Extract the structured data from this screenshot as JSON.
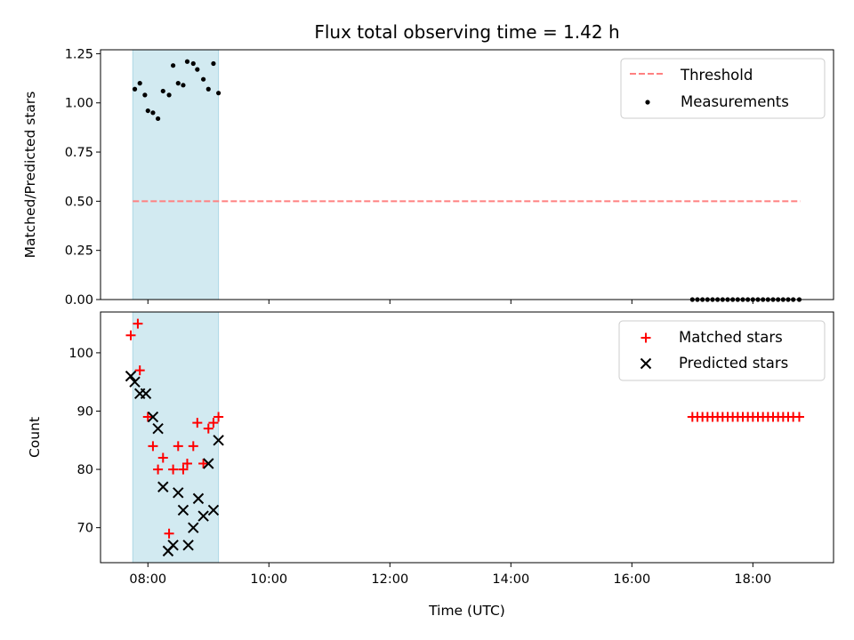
{
  "chart_data": [
    {
      "type": "scatter",
      "title": "Flux total observing time = 1.42 h",
      "xlabel": "",
      "ylabel": "Matched/Predicted stars",
      "xlim": [
        "07:13",
        "19:20"
      ],
      "ylim": [
        0.0,
        1.27
      ],
      "y_ticks": [
        0.0,
        0.25,
        0.5,
        0.75,
        1.0,
        1.25
      ],
      "y_tick_labels": [
        "0.00",
        "0.25",
        "0.50",
        "0.75",
        "1.00",
        "1.25"
      ],
      "x_ticks": [
        "08:00",
        "10:00",
        "12:00",
        "14:00",
        "16:00",
        "18:00"
      ],
      "x_tick_labels_visible": false,
      "shaded_span": [
        "07:45",
        "09:10"
      ],
      "shaded_color": "#add8e6",
      "legend": "top-right",
      "threshold": {
        "name": "Threshold",
        "value": 0.5,
        "x_range": [
          "07:45",
          "18:47"
        ],
        "color": "#ff8080",
        "style": "dashed"
      },
      "series": [
        {
          "name": "Measurements",
          "color": "#000000",
          "marker": "dot",
          "points": [
            [
              "07:47",
              1.07
            ],
            [
              "07:52",
              1.1
            ],
            [
              "07:57",
              1.04
            ],
            [
              "08:00",
              0.96
            ],
            [
              "08:05",
              0.95
            ],
            [
              "08:10",
              0.92
            ],
            [
              "08:15",
              1.06
            ],
            [
              "08:21",
              1.04
            ],
            [
              "08:25",
              1.19
            ],
            [
              "08:30",
              1.1
            ],
            [
              "08:35",
              1.09
            ],
            [
              "08:39",
              1.21
            ],
            [
              "08:45",
              1.2
            ],
            [
              "08:49",
              1.17
            ],
            [
              "08:55",
              1.12
            ],
            [
              "09:00",
              1.07
            ],
            [
              "09:05",
              1.2
            ],
            [
              "09:10",
              1.05
            ],
            [
              "17:00",
              0.0
            ],
            [
              "17:05",
              0.0
            ],
            [
              "17:10",
              0.0
            ],
            [
              "17:15",
              0.0
            ],
            [
              "17:20",
              0.0
            ],
            [
              "17:25",
              0.0
            ],
            [
              "17:30",
              0.0
            ],
            [
              "17:35",
              0.0
            ],
            [
              "17:40",
              0.0
            ],
            [
              "17:45",
              0.0
            ],
            [
              "17:50",
              0.0
            ],
            [
              "17:55",
              0.0
            ],
            [
              "18:00",
              0.0
            ],
            [
              "18:05",
              0.0
            ],
            [
              "18:10",
              0.0
            ],
            [
              "18:15",
              0.0
            ],
            [
              "18:20",
              0.0
            ],
            [
              "18:25",
              0.0
            ],
            [
              "18:30",
              0.0
            ],
            [
              "18:35",
              0.0
            ],
            [
              "18:40",
              0.0
            ],
            [
              "18:46",
              0.0
            ]
          ]
        }
      ]
    },
    {
      "type": "scatter",
      "title": "",
      "xlabel": "Time (UTC)",
      "ylabel": "Count",
      "xlim": [
        "07:13",
        "19:20"
      ],
      "ylim": [
        64,
        107
      ],
      "y_ticks": [
        70,
        80,
        90,
        100
      ],
      "y_tick_labels": [
        "70",
        "80",
        "90",
        "100"
      ],
      "x_ticks": [
        "08:00",
        "10:00",
        "12:00",
        "14:00",
        "16:00",
        "18:00"
      ],
      "x_tick_labels": [
        "08:00",
        "10:00",
        "12:00",
        "14:00",
        "16:00",
        "18:00"
      ],
      "shaded_span": [
        "07:45",
        "09:10"
      ],
      "shaded_color": "#add8e6",
      "legend": "top-right",
      "series": [
        {
          "name": "Matched stars",
          "color": "#ff0000",
          "marker": "plus",
          "points": [
            [
              "07:43",
              103
            ],
            [
              "07:50",
              105
            ],
            [
              "07:52",
              97
            ],
            [
              "08:00",
              89
            ],
            [
              "08:05",
              84
            ],
            [
              "08:10",
              80
            ],
            [
              "08:15",
              82
            ],
            [
              "08:21",
              69
            ],
            [
              "08:25",
              80
            ],
            [
              "08:30",
              84
            ],
            [
              "08:35",
              80
            ],
            [
              "08:39",
              81
            ],
            [
              "08:45",
              84
            ],
            [
              "08:49",
              88
            ],
            [
              "08:55",
              81
            ],
            [
              "09:00",
              87
            ],
            [
              "09:05",
              88
            ],
            [
              "09:10",
              89
            ],
            [
              "17:00",
              89
            ],
            [
              "17:05",
              89
            ],
            [
              "17:10",
              89
            ],
            [
              "17:15",
              89
            ],
            [
              "17:20",
              89
            ],
            [
              "17:25",
              89
            ],
            [
              "17:30",
              89
            ],
            [
              "17:35",
              89
            ],
            [
              "17:40",
              89
            ],
            [
              "17:45",
              89
            ],
            [
              "17:50",
              89
            ],
            [
              "17:55",
              89
            ],
            [
              "18:00",
              89
            ],
            [
              "18:05",
              89
            ],
            [
              "18:10",
              89
            ],
            [
              "18:15",
              89
            ],
            [
              "18:20",
              89
            ],
            [
              "18:25",
              89
            ],
            [
              "18:30",
              89
            ],
            [
              "18:35",
              89
            ],
            [
              "18:40",
              89
            ],
            [
              "18:46",
              89
            ]
          ]
        },
        {
          "name": "Predicted stars",
          "color": "#000000",
          "marker": "x",
          "points": [
            [
              "07:43",
              96
            ],
            [
              "07:47",
              95
            ],
            [
              "07:52",
              93
            ],
            [
              "07:58",
              93
            ],
            [
              "08:05",
              89
            ],
            [
              "08:10",
              87
            ],
            [
              "08:15",
              77
            ],
            [
              "08:20",
              66
            ],
            [
              "08:25",
              67
            ],
            [
              "08:30",
              76
            ],
            [
              "08:35",
              73
            ],
            [
              "08:40",
              67
            ],
            [
              "08:45",
              70
            ],
            [
              "08:50",
              75
            ],
            [
              "08:55",
              72
            ],
            [
              "09:00",
              81
            ],
            [
              "09:05",
              73
            ],
            [
              "09:10",
              85
            ]
          ]
        }
      ]
    }
  ]
}
